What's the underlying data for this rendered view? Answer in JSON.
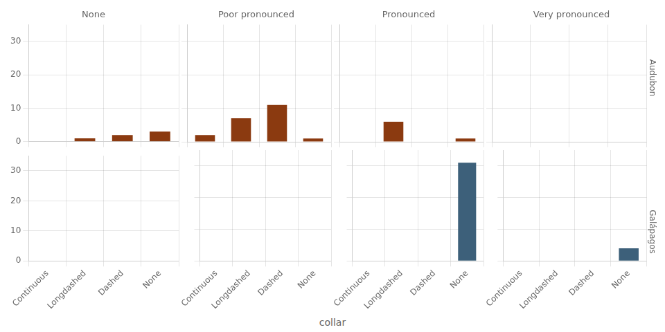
{
  "chart_data": [
    {
      "type": "bar",
      "title": "None",
      "categories": [
        "Continuous",
        "Longdashed",
        "Dashed",
        "None"
      ],
      "values": [
        0,
        1,
        2,
        3
      ],
      "color": "#8B3A10",
      "ylim": [
        0,
        35
      ],
      "yticks": [
        0,
        10,
        20,
        30
      ],
      "grid": true,
      "tick_labels": "y"
    },
    {
      "type": "bar",
      "title": "Poor pronounced",
      "categories": [
        "Continuous",
        "Longdashed",
        "Dashed",
        "None"
      ],
      "values": [
        2,
        7,
        11,
        1
      ],
      "color": "#8B3A10",
      "ylim": [
        0,
        35
      ],
      "yticks": [
        0,
        10,
        20,
        30
      ],
      "grid": true,
      "tick_labels": false
    },
    {
      "type": "bar",
      "title": "Pronounced",
      "categories": [
        "Continuous",
        "Longdashed",
        "Dashed",
        "None"
      ],
      "values": [
        0,
        6,
        0,
        1
      ],
      "color": "#8B3A10",
      "ylim": [
        0,
        35
      ],
      "yticks": [
        0,
        10,
        20,
        30
      ],
      "grid": true,
      "tick_labels": false
    },
    {
      "type": "bar",
      "title": "Very pronounced",
      "subtitle": "Audubon",
      "categories": [
        "Continuous",
        "Longdashed",
        "Dashed",
        "None"
      ],
      "values": [
        0,
        0,
        0,
        0
      ],
      "color": "#8B3A10",
      "ylim": [
        0,
        35
      ],
      "yticks": [
        0,
        10,
        20,
        30
      ],
      "grid": true,
      "tick_labels": false
    },
    {
      "type": "bar",
      "categories": [
        "Continuous",
        "Longdashed",
        "Dashed",
        "None"
      ],
      "values": [
        0,
        0,
        0,
        0
      ],
      "color": "#3D607A",
      "ylim": [
        0,
        35
      ],
      "yticks": [
        0,
        10,
        20,
        30
      ],
      "grid": true
    },
    {
      "type": "bar",
      "xlabel": "collar",
      "categories": [
        "Continuous",
        "Longdashed",
        "Dashed",
        "None"
      ],
      "values": [
        0,
        0,
        0,
        0
      ],
      "color": "#3D607A",
      "ylim": [
        0,
        35
      ],
      "yticks": [
        0,
        10,
        20,
        30
      ],
      "grid": true,
      "tick_labels": "x"
    },
    {
      "type": "bar",
      "categories": [
        "Continuous",
        "Longdashed",
        "Dashed",
        "None"
      ],
      "values": [
        0,
        0,
        0,
        31
      ],
      "color": "#3D607A",
      "ylim": [
        0,
        35
      ],
      "yticks": [
        0,
        10,
        20,
        30
      ],
      "grid": true,
      "tick_labels": "x"
    },
    {
      "type": "bar",
      "subtitle": "Galápagos",
      "categories": [
        "Continuous",
        "Longdashed",
        "Dashed",
        "None"
      ],
      "values": [
        0,
        0,
        0,
        4
      ],
      "color": "#3D607A",
      "ylim": [
        0,
        35
      ],
      "yticks": [
        0,
        10,
        20,
        30
      ],
      "grid": true,
      "tick_labels": "x"
    }
  ]
}
